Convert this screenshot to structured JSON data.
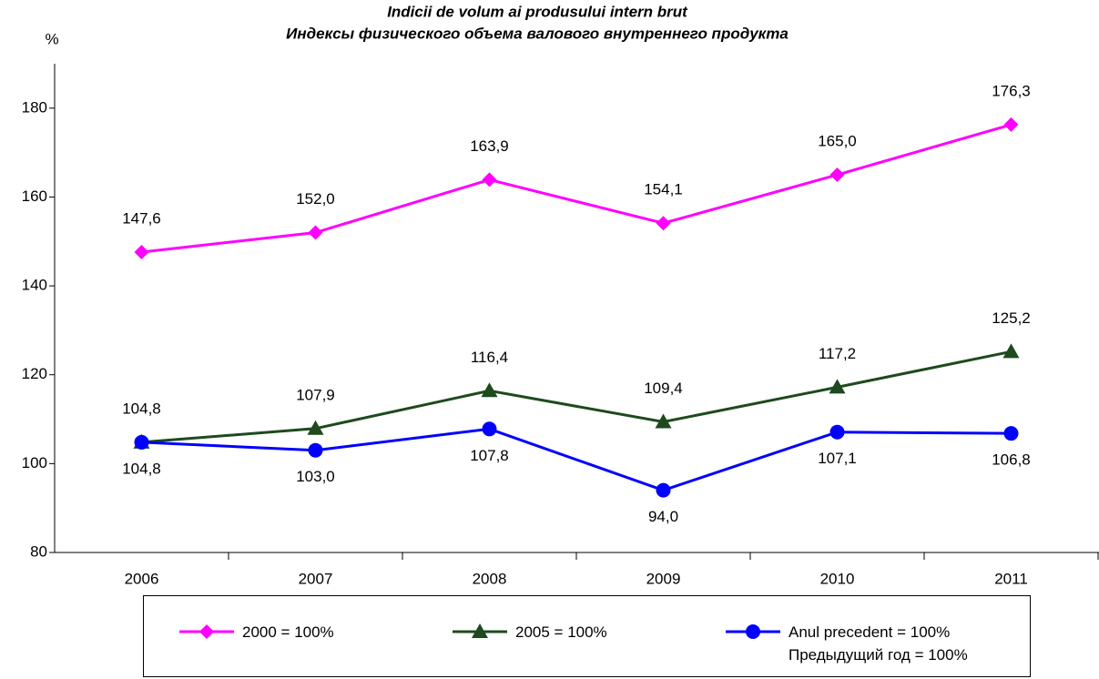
{
  "chart_data": {
    "type": "line",
    "title": "Indicii de volum ai produsului intern brut",
    "subtitle": "Индексы физического объема валового внутреннего продукта",
    "y_label": "%",
    "categories": [
      "2006",
      "2007",
      "2008",
      "2009",
      "2010",
      "2011"
    ],
    "series": [
      {
        "name": "2000 = 100%",
        "color": "#ff00ff",
        "marker": "diamond",
        "label_position": "above",
        "values": [
          147.6,
          152.0,
          163.9,
          154.1,
          165.0,
          176.3
        ],
        "value_labels": [
          "147,6",
          "152,0",
          "163,9",
          "154,1",
          "165,0",
          "176,3"
        ]
      },
      {
        "name": "2005 = 100%",
        "color": "#1e4a1e",
        "marker": "triangle",
        "label_position": "above",
        "values": [
          104.8,
          107.9,
          116.4,
          109.4,
          117.2,
          125.2
        ],
        "value_labels": [
          "104,8",
          "107,9",
          "116,4",
          "109,4",
          "117,2",
          "125,2"
        ]
      },
      {
        "name": "Anul precedent = 100%\nПредыдущий год = 100%",
        "color": "#0000ff",
        "marker": "circle",
        "label_position": "below",
        "values": [
          104.8,
          103.0,
          107.8,
          94.0,
          107.1,
          106.8
        ],
        "value_labels": [
          "104,8",
          "103,0",
          "107,8",
          "94,0",
          "107,1",
          "106,8"
        ]
      }
    ],
    "ylim": [
      80,
      190
    ],
    "yticks": [
      80,
      100,
      120,
      140,
      160,
      180
    ],
    "grid": false,
    "legend": "bottom"
  }
}
